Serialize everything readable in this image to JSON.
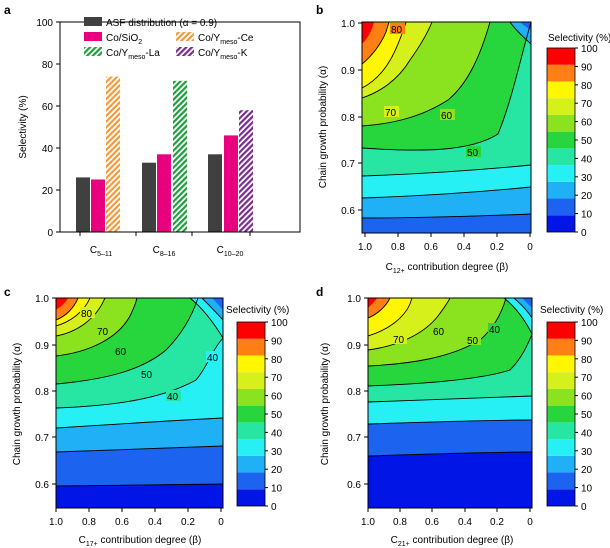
{
  "chart_data": [
    {
      "panel": "a",
      "type": "bar",
      "ylabel": "Selectivity (%)",
      "ylim": [
        0,
        100
      ],
      "yticks": [
        0,
        20,
        40,
        60,
        80,
        100
      ],
      "category_labels": [
        {
          "base": "C",
          "sub": "5–11"
        },
        {
          "base": "C",
          "sub": "8–16"
        },
        {
          "base": "C",
          "sub": "10–20"
        }
      ],
      "series": [
        {
          "name": "ASF distribution (α = 0.9)",
          "color": "#404040",
          "pattern": "solid",
          "values": [
            26,
            33,
            37
          ]
        },
        {
          "name": "Co/SiO2",
          "color": "#e8007e",
          "pattern": "solid",
          "values": [
            25,
            37,
            46
          ]
        },
        {
          "name": "Co/Ymeso-Ce",
          "color": "#f39a3b",
          "pattern": "hatch",
          "values": [
            74,
            null,
            null
          ]
        },
        {
          "name": "Co/Ymeso-La",
          "color": "#1e9e3c",
          "pattern": "hatch",
          "values": [
            null,
            72,
            null
          ]
        },
        {
          "name": "Co/Ymeso-K",
          "color": "#7b2b8f",
          "pattern": "hatch",
          "values": [
            null,
            null,
            58
          ]
        }
      ],
      "legend": [
        {
          "main": "ASF distribution (α = 0.9)"
        },
        {
          "main": "Co/SiO",
          "sub": "2",
          "rest": ""
        },
        {
          "main": "Co/Y",
          "sub": "meso",
          "rest": "-Ce"
        },
        {
          "main": "Co/Y",
          "sub": "meso",
          "rest": "-La"
        },
        {
          "main": "Co/Y",
          "sub": "meso",
          "rest": "-K"
        }
      ]
    },
    {
      "panel": "b",
      "type": "contour",
      "xlabel": {
        "pre": "C",
        "sub": "12+",
        "post": " contribution degree (β)"
      },
      "ylabel": "Chain growth probability (α)",
      "xlim": [
        1.0,
        0
      ],
      "ylim": [
        0.55,
        1.0
      ],
      "xticks": [
        "1.0",
        "0.8",
        "0.6",
        "0.4",
        "0.2",
        "0"
      ],
      "yticks": [
        "0.6",
        "0.7",
        "0.8",
        "0.9",
        "1.0"
      ],
      "contour_labels": [
        "80",
        "70",
        "60",
        "50"
      ],
      "colorbar_title": "Selectivity (%)"
    },
    {
      "panel": "c",
      "type": "contour",
      "xlabel": {
        "pre": "C",
        "sub": "17+",
        "post": " contribution degree (β)"
      },
      "ylabel": "Chain growth probability (α)",
      "xlim": [
        1.0,
        0
      ],
      "ylim": [
        0.55,
        1.0
      ],
      "xticks": [
        "1.0",
        "0.8",
        "0.6",
        "0.4",
        "0.2",
        "0"
      ],
      "yticks": [
        "0.6",
        "0.7",
        "0.8",
        "0.9",
        "1.0"
      ],
      "contour_labels": [
        "80",
        "70",
        "60",
        "50",
        "40",
        "40"
      ],
      "colorbar_title": "Selectivity (%)"
    },
    {
      "panel": "d",
      "type": "contour",
      "xlabel": {
        "pre": "C",
        "sub": "21+",
        "post": " contribution degree (β)"
      },
      "ylabel": "Chain growth probability (α)",
      "xlim": [
        1.0,
        0
      ],
      "ylim": [
        0.55,
        1.0
      ],
      "xticks": [
        "1.0",
        "0.8",
        "0.6",
        "0.4",
        "0.2",
        "0"
      ],
      "yticks": [
        "0.6",
        "0.7",
        "0.8",
        "0.9",
        "1.0"
      ],
      "contour_labels": [
        "70",
        "60",
        "50",
        "40"
      ],
      "colorbar_title": "Selectivity (%)"
    }
  ],
  "colorbar": {
    "levels": [
      "0",
      "10",
      "20",
      "30",
      "40",
      "50",
      "60",
      "70",
      "80",
      "90",
      "100"
    ],
    "colors": [
      "#0015e6",
      "#1c63f0",
      "#1fb0f5",
      "#27f0f5",
      "#27e6a4",
      "#27d63c",
      "#8be21e",
      "#d6f01b",
      "#fff700",
      "#ff7f14",
      "#ff0000"
    ]
  },
  "panel_letters": [
    "a",
    "b",
    "c",
    "d"
  ]
}
